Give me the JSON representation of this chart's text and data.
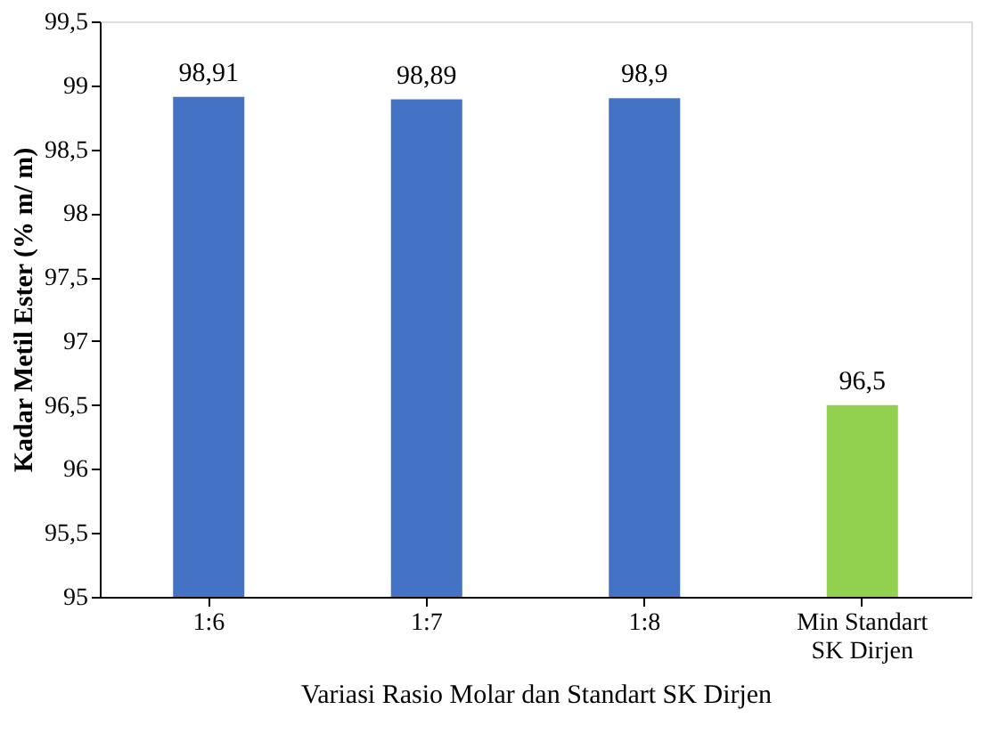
{
  "chart_data": {
    "type": "bar",
    "xlabel": "Variasi Rasio Molar dan Standart SK Dirjen",
    "ylabel": "Kadar Metil Ester (% m/ m)",
    "categories": [
      "1:6",
      "1:7",
      "1:8",
      "Min Standart\nSK Dirjen"
    ],
    "values": [
      98.91,
      98.89,
      98.9,
      96.5
    ],
    "colors": [
      "#4472c4",
      "#4472c4",
      "#4472c4",
      "#92d050"
    ],
    "value_labels": [
      "98,91",
      "98,89",
      "98,9",
      "96,5"
    ],
    "ylim": [
      95,
      99.5
    ],
    "yticks": [
      95,
      {
        "value": 95.5,
        "label": "95,5"
      },
      96,
      {
        "value": 96.5,
        "label": "96,5"
      },
      97,
      {
        "value": 97.5,
        "label": "97,5"
      },
      98,
      {
        "value": 98.5,
        "label": "98,5"
      },
      99,
      {
        "value": 99.5,
        "label": "99,5"
      }
    ],
    "grid": false
  }
}
